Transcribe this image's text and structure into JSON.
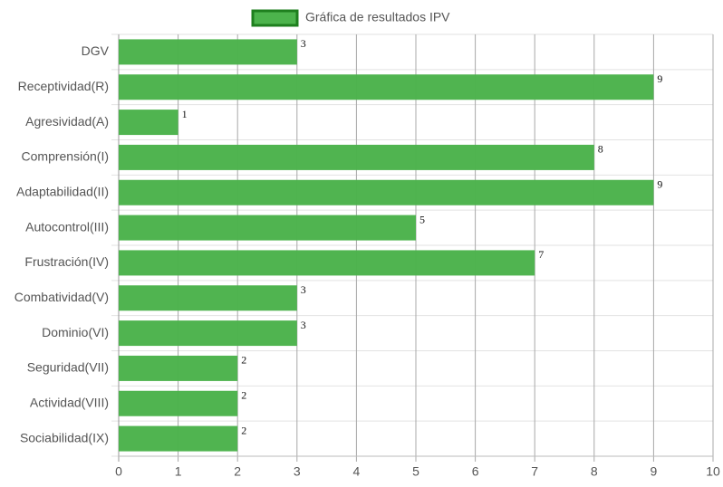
{
  "chart_data": {
    "type": "bar",
    "orientation": "horizontal",
    "categories": [
      "DGV",
      "Receptividad(R)",
      "Agresividad(A)",
      "Comprensión(I)",
      "Adaptabilidad(II)",
      "Autocontrol(III)",
      "Frustración(IV)",
      "Combatividad(V)",
      "Dominio(VI)",
      "Seguridad(VII)",
      "Actividad(VIII)",
      "Sociabilidad(IX)"
    ],
    "series": [
      {
        "name": "Gráfica de resultados IPV",
        "color": "#4cb34c",
        "border_color": "#1e7f1e",
        "values": [
          3,
          9,
          1,
          8,
          9,
          5,
          7,
          3,
          3,
          2,
          2,
          2
        ]
      }
    ],
    "xlim": [
      0,
      10
    ],
    "xticks": [
      0,
      1,
      2,
      3,
      4,
      5,
      6,
      7,
      8,
      9,
      10
    ],
    "grid": true,
    "legend": "top"
  }
}
